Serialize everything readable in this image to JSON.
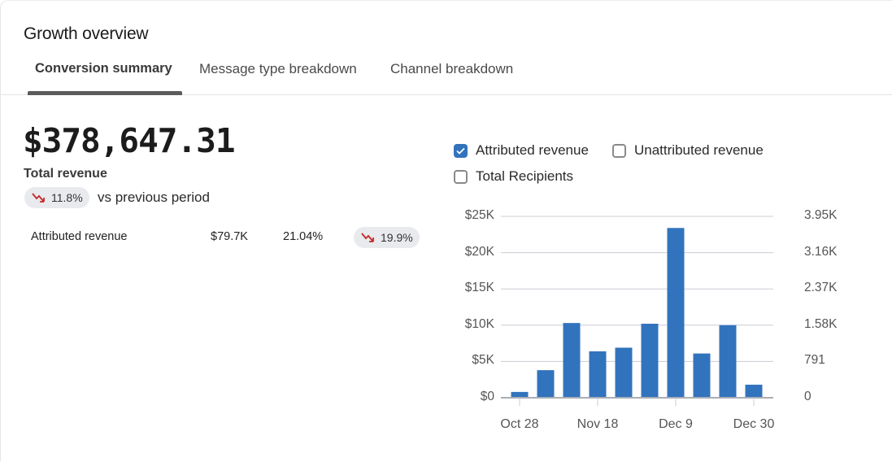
{
  "header": {
    "title": "Growth overview"
  },
  "tabs": [
    {
      "label": "Conversion summary",
      "active": true
    },
    {
      "label": "Message type breakdown",
      "active": false
    },
    {
      "label": "Channel breakdown",
      "active": false
    }
  ],
  "summary": {
    "total_value": "$378,647.31",
    "total_label": "Total revenue",
    "change": "11.8%",
    "change_direction": "down",
    "change_suffix": "vs previous period"
  },
  "breakdown_rows": [
    {
      "label": "Attributed revenue",
      "value": "$79.7K",
      "share": "21.04%",
      "change": "19.9%",
      "change_direction": "down"
    }
  ],
  "legend": [
    {
      "label": "Attributed revenue",
      "checked": true
    },
    {
      "label": "Unattributed revenue",
      "checked": false
    },
    {
      "label": "Total Recipients",
      "checked": false
    }
  ],
  "colors": {
    "bar": "#3273bd",
    "down": "#c62828",
    "pill_bg": "#e8eaed",
    "checkbox": "#3273bd"
  },
  "chart_data": {
    "type": "bar",
    "series": [
      {
        "name": "Attributed revenue",
        "values": [
          0.8,
          3.8,
          10.3,
          6.4,
          6.9,
          10.2,
          23.4,
          6.1,
          10.0,
          1.8
        ]
      }
    ],
    "value_unit": "$K",
    "x_tick_labels": [
      "Oct 28",
      "Nov 18",
      "Dec 9",
      "Dec 30"
    ],
    "x_tick_indices": [
      0,
      3,
      6,
      9
    ],
    "y_left_ticks": [
      "$0",
      "$5K",
      "$10K",
      "$15K",
      "$20K",
      "$25K"
    ],
    "y_right_ticks": [
      "0",
      "791",
      "1.58K",
      "2.37K",
      "3.16K",
      "3.95K"
    ],
    "ylim": [
      0,
      25
    ],
    "grid": true
  }
}
